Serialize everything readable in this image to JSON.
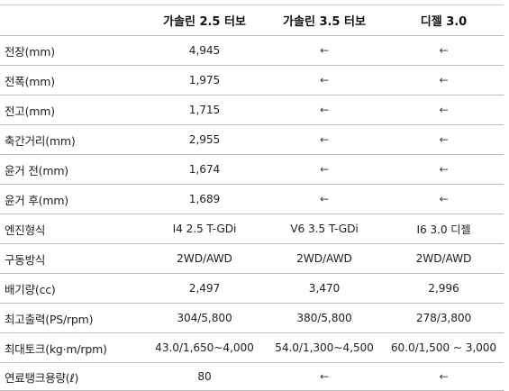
{
  "header": {
    "corner": "",
    "columns": [
      "가솔린 2.5 터보",
      "가솔린 3.5 터보",
      "디젤 3.0"
    ]
  },
  "rows": [
    {
      "label": "전장(mm)",
      "values": [
        "4,945",
        "←",
        "←"
      ]
    },
    {
      "label": "전폭(mm)",
      "values": [
        "1,975",
        "←",
        "←"
      ]
    },
    {
      "label": "전고(mm)",
      "values": [
        "1,715",
        "←",
        "←"
      ]
    },
    {
      "label": "축간거리(mm)",
      "values": [
        "2,955",
        "←",
        "←"
      ]
    },
    {
      "label": "윤거 전(mm)",
      "values": [
        "1,674",
        "←",
        "←"
      ]
    },
    {
      "label": "윤거 후(mm)",
      "values": [
        "1,689",
        "←",
        "←"
      ]
    },
    {
      "label": "엔진형식",
      "values": [
        "I4 2.5 T-GDi",
        "V6 3.5 T-GDi",
        "I6 3.0 디젤"
      ]
    },
    {
      "label": "구동방식",
      "values": [
        "2WD/AWD",
        "2WD/AWD",
        "2WD/AWD"
      ]
    },
    {
      "label": "배기량(cc)",
      "values": [
        "2,497",
        "3,470",
        "2,996"
      ]
    },
    {
      "label": "최고출력(PS/rpm)",
      "values": [
        "304/5,800",
        "380/5,800",
        "278/3,800"
      ]
    },
    {
      "label": "최대토크(kg·m/rpm)",
      "values": [
        "43.0/1,650~4,000",
        "54.0/1,300~4,500",
        "60.0/1,500 ~ 3,000"
      ]
    },
    {
      "label": "연료탱크용량(ℓ)",
      "values": [
        "80",
        "←",
        "←"
      ]
    }
  ]
}
